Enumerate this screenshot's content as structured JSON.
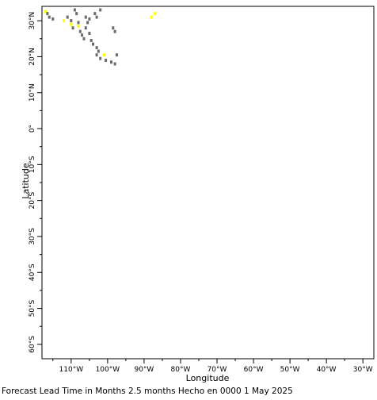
{
  "chart_data": {
    "type": "heatmap",
    "xlabel": "Longitude",
    "ylabel": "Latitude",
    "xlim": [
      -118,
      -27
    ],
    "ylim": [
      -64,
      34
    ],
    "x_ticks": [
      {
        "value": -110,
        "label": "110°W"
      },
      {
        "value": -100,
        "label": "100°W"
      },
      {
        "value": -90,
        "label": "90°W"
      },
      {
        "value": -80,
        "label": "80°W"
      },
      {
        "value": -70,
        "label": "70°W"
      },
      {
        "value": -60,
        "label": "60°W"
      },
      {
        "value": -50,
        "label": "50°W"
      },
      {
        "value": -40,
        "label": "40°W"
      },
      {
        "value": -30,
        "label": "30°W"
      }
    ],
    "y_ticks": [
      {
        "value": 30,
        "label": "30°N"
      },
      {
        "value": 20,
        "label": "20°N"
      },
      {
        "value": 10,
        "label": "10°N"
      },
      {
        "value": 0,
        "label": "0°"
      },
      {
        "value": -10,
        "label": "10°S"
      },
      {
        "value": -20,
        "label": "20°S"
      },
      {
        "value": -30,
        "label": "30°S"
      },
      {
        "value": -40,
        "label": "40°S"
      },
      {
        "value": -50,
        "label": "50°S"
      },
      {
        "value": -60,
        "label": "60°S"
      }
    ],
    "colors": {
      "gray": "#6b6b6b",
      "yellow": "#ffff00"
    },
    "cells": [
      {
        "lon": -117,
        "lat": 32.5,
        "c": "yellow"
      },
      {
        "lon": -116.5,
        "lat": 32,
        "c": "gray"
      },
      {
        "lon": -116,
        "lat": 31,
        "c": "gray"
      },
      {
        "lon": -115,
        "lat": 30.5,
        "c": "gray"
      },
      {
        "lon": -112,
        "lat": 30,
        "c": "yellow"
      },
      {
        "lon": -111,
        "lat": 31,
        "c": "gray"
      },
      {
        "lon": -110,
        "lat": 30,
        "c": "gray"
      },
      {
        "lon": -110,
        "lat": 29,
        "c": "yellow"
      },
      {
        "lon": -109.5,
        "lat": 28,
        "c": "gray"
      },
      {
        "lon": -109,
        "lat": 33,
        "c": "gray"
      },
      {
        "lon": -108.5,
        "lat": 32,
        "c": "gray"
      },
      {
        "lon": -108,
        "lat": 29.5,
        "c": "gray"
      },
      {
        "lon": -108,
        "lat": 28.5,
        "c": "yellow"
      },
      {
        "lon": -107.5,
        "lat": 27,
        "c": "gray"
      },
      {
        "lon": -107,
        "lat": 26,
        "c": "gray"
      },
      {
        "lon": -106.5,
        "lat": 25,
        "c": "gray"
      },
      {
        "lon": -106,
        "lat": 31,
        "c": "gray"
      },
      {
        "lon": -106,
        "lat": 28,
        "c": "gray"
      },
      {
        "lon": -105.5,
        "lat": 29.5,
        "c": "gray"
      },
      {
        "lon": -105,
        "lat": 30.5,
        "c": "gray"
      },
      {
        "lon": -105,
        "lat": 26.5,
        "c": "gray"
      },
      {
        "lon": -104.5,
        "lat": 24.5,
        "c": "gray"
      },
      {
        "lon": -104,
        "lat": 23.5,
        "c": "gray"
      },
      {
        "lon": -103.5,
        "lat": 32,
        "c": "gray"
      },
      {
        "lon": -103,
        "lat": 31,
        "c": "gray"
      },
      {
        "lon": -103,
        "lat": 22.5,
        "c": "gray"
      },
      {
        "lon": -102.5,
        "lat": 21.5,
        "c": "gray"
      },
      {
        "lon": -103,
        "lat": 20.5,
        "c": "gray"
      },
      {
        "lon": -102,
        "lat": 33,
        "c": "gray"
      },
      {
        "lon": -102,
        "lat": 19.5,
        "c": "gray"
      },
      {
        "lon": -101,
        "lat": 20.5,
        "c": "yellow"
      },
      {
        "lon": -100.5,
        "lat": 19,
        "c": "gray"
      },
      {
        "lon": -99,
        "lat": 18.5,
        "c": "gray"
      },
      {
        "lon": -98.5,
        "lat": 28,
        "c": "gray"
      },
      {
        "lon": -98,
        "lat": 27,
        "c": "gray"
      },
      {
        "lon": -98,
        "lat": 18,
        "c": "gray"
      },
      {
        "lon": -97.5,
        "lat": 20.5,
        "c": "gray"
      },
      {
        "lon": -88,
        "lat": 31,
        "c": "yellow"
      },
      {
        "lon": -87,
        "lat": 32,
        "c": "yellow"
      }
    ]
  },
  "footer": {
    "text": "Forecast Lead Time in Months 2.5 months Hecho en 0000 1 May 2025"
  }
}
